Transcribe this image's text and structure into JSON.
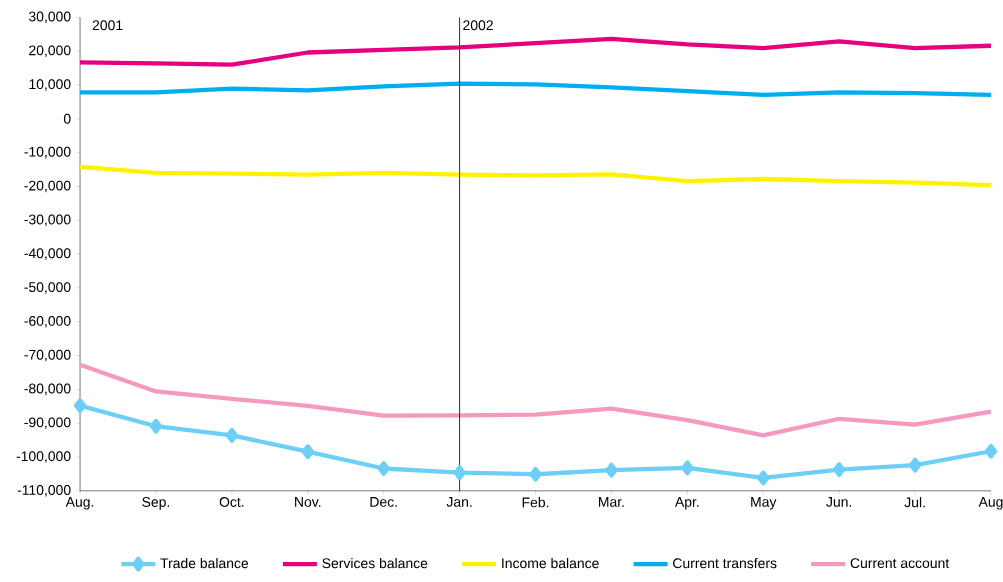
{
  "chart_data": {
    "type": "line",
    "categories": [
      "Aug.",
      "Sep.",
      "Oct.",
      "Nov.",
      "Dec.",
      "Jan.",
      "Feb.",
      "Mar.",
      "Apr.",
      "May",
      "Jun.",
      "Jul.",
      "Aug"
    ],
    "series": [
      {
        "name": "Trade balance",
        "color": "#6dcff6",
        "marker": "diamond",
        "values": [
          -84800,
          -90900,
          -93600,
          -98400,
          -103400,
          -104600,
          -105100,
          -103900,
          -103200,
          -106200,
          -103700,
          -102400,
          -98300
        ]
      },
      {
        "name": "Services balance",
        "color": "#e6007e",
        "values": [
          16700,
          16400,
          16000,
          19600,
          20400,
          21100,
          22400,
          23600,
          22000,
          20900,
          22900,
          20900,
          21600
        ]
      },
      {
        "name": "Income balance",
        "color": "#fff200",
        "values": [
          -14200,
          -16000,
          -16200,
          -16500,
          -16000,
          -16500,
          -16700,
          -16400,
          -18400,
          -17800,
          -18400,
          -18900,
          -19600
        ]
      },
      {
        "name": "Current transfers",
        "color": "#00aeef",
        "values": [
          7800,
          7800,
          8900,
          8400,
          9600,
          10400,
          10200,
          9300,
          8200,
          7100,
          7800,
          7600,
          7100
        ]
      },
      {
        "name": "Current account",
        "color": "#f49ac1",
        "values": [
          -72700,
          -80600,
          -82800,
          -84900,
          -87800,
          -87700,
          -87500,
          -85700,
          -89100,
          -93600,
          -88700,
          -90400,
          -86600
        ]
      }
    ],
    "ylim": [
      -110000,
      30000
    ],
    "yticks": [
      {
        "value": -110000,
        "label": "-110,000"
      },
      {
        "value": -100000,
        "label": "-100,000"
      },
      {
        "value": -90000,
        "label": "-90,000"
      },
      {
        "value": -80000,
        "label": "-80,000"
      },
      {
        "value": -70000,
        "label": "-70,000"
      },
      {
        "value": -60000,
        "label": "-60,000"
      },
      {
        "value": -50000,
        "label": "-50,000"
      },
      {
        "value": -40000,
        "label": "-40,000"
      },
      {
        "value": -30000,
        "label": "-30,000"
      },
      {
        "value": -20000,
        "label": "-20,000"
      },
      {
        "value": -10000,
        "label": "-10,000"
      },
      {
        "value": 0,
        "label": "0"
      },
      {
        "value": 10000,
        "label": "10,000"
      },
      {
        "value": 20000,
        "label": "20,000"
      },
      {
        "value": 30000,
        "label": "30,000"
      }
    ],
    "ref_lines": [
      {
        "axis": "x",
        "value": "Jan.",
        "label": "2002",
        "color": "#231f20"
      }
    ],
    "annotations": [
      "2001"
    ],
    "marker": "none",
    "line_style": "solid",
    "grid": false,
    "legend": "bottom"
  }
}
